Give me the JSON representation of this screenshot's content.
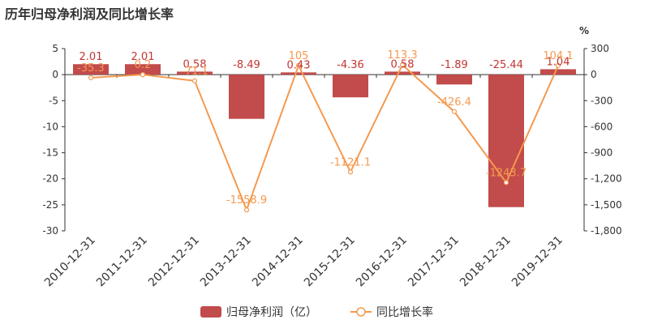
{
  "title": "历年归母净利润及同比增长率",
  "right_axis_unit": "%",
  "colors": {
    "bar": "#c24b4b",
    "line": "#f5994e",
    "text": "#333333",
    "axis": "#333333"
  },
  "chart_data": {
    "type": "bar",
    "title": "历年归母净利润及同比增长率",
    "categories": [
      "2010-12-31",
      "2011-12-31",
      "2012-12-31",
      "2013-12-31",
      "2014-12-31",
      "2015-12-31",
      "2016-12-31",
      "2017-12-31",
      "2018-12-31",
      "2019-12-31"
    ],
    "series": [
      {
        "name": "归母净利润（亿）",
        "type": "bar",
        "axis": "left",
        "values": [
          2.01,
          2.01,
          0.58,
          -8.49,
          0.43,
          -4.36,
          0.58,
          -1.89,
          -25.44,
          1.04
        ],
        "labels": [
          "2.01",
          "2.01",
          "0.58",
          "-8.49",
          "0.43",
          "-4.36",
          "0.58",
          "-1.89",
          "-25.44",
          "1.04"
        ]
      },
      {
        "name": "同比增长率",
        "type": "line",
        "axis": "right",
        "values": [
          -35.3,
          0.2,
          -71.1,
          -1558.9,
          105,
          -1121.1,
          113.3,
          -426.4,
          -1243.7,
          104.1
        ],
        "labels": [
          "-35.3",
          "0.2",
          "-71.1",
          "-1558.9",
          "105",
          "-1121.1",
          "113.3",
          "-426.4",
          "-1243.7",
          "104.1"
        ]
      }
    ],
    "ylim_left": [
      -30,
      5
    ],
    "yticks_left": [
      "5",
      "0",
      "-5",
      "-10",
      "-15",
      "-20",
      "-25",
      "-30"
    ],
    "ylim_right": [
      -1800,
      300
    ],
    "yticks_right": [
      "300",
      "0",
      "-300",
      "-600",
      "-900",
      "-1,200",
      "-1,500",
      "-1,800"
    ],
    "legend_position": "bottom",
    "grid": false
  }
}
